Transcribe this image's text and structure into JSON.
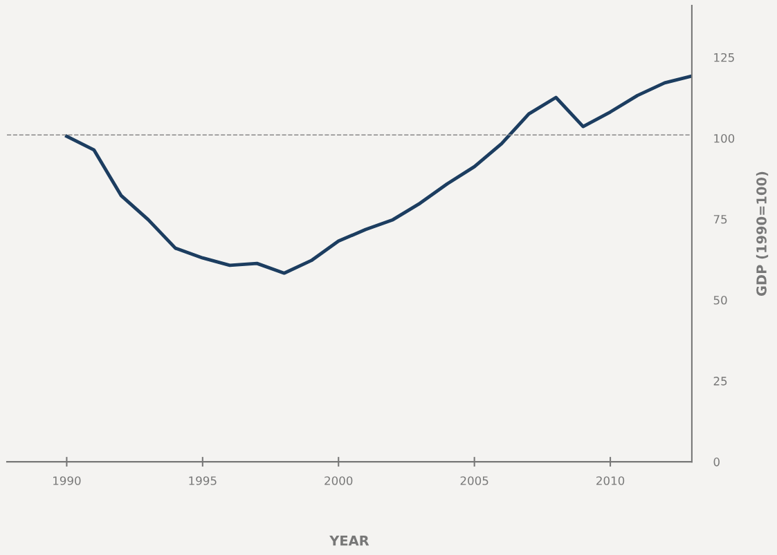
{
  "chart_data": {
    "type": "line",
    "xlabel": "YEAR",
    "ylabel": "GDP (1990=100)",
    "x": [
      1990,
      1991,
      1992,
      1993,
      1994,
      1995,
      1996,
      1997,
      1998,
      1999,
      2000,
      2001,
      2002,
      2003,
      2004,
      2005,
      2006,
      2007,
      2008,
      2009,
      2010,
      2011,
      2012,
      2013
    ],
    "series": [
      {
        "color": "#1c3d60",
        "values": [
          100.6,
          96.4,
          82.3,
          74.8,
          66.0,
          63.0,
          60.7,
          61.3,
          58.3,
          62.2,
          68.2,
          71.8,
          74.8,
          79.9,
          85.9,
          91.2,
          98.3,
          107.5,
          112.6,
          103.6,
          108.1,
          113.2,
          117.1,
          119.2
        ]
      }
    ],
    "xlim": [
      1987.8,
      2013
    ],
    "xticks": [
      1990,
      1995,
      2000,
      2005,
      2010
    ],
    "ylim": [
      0,
      141
    ],
    "yticks": [
      0,
      25,
      50,
      75,
      100,
      125
    ],
    "ref_lines": [
      {
        "axis": "y",
        "value": 101,
        "color": "#888888",
        "line_style": "dashed"
      }
    ],
    "grid": false,
    "legend": false,
    "marker": "none",
    "line_style": "solid"
  }
}
